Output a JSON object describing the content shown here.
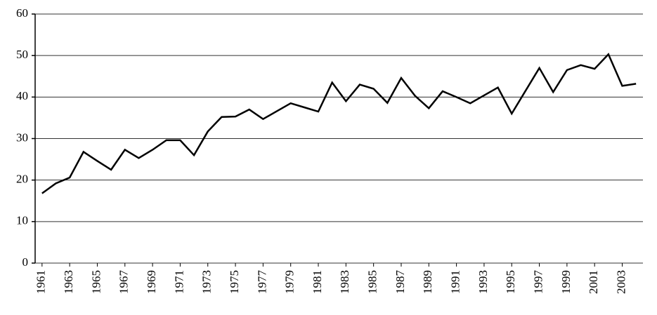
{
  "chart_data": {
    "type": "line",
    "x": [
      1961,
      1962,
      1963,
      1964,
      1965,
      1966,
      1967,
      1968,
      1969,
      1970,
      1971,
      1972,
      1973,
      1974,
      1975,
      1976,
      1977,
      1978,
      1979,
      1980,
      1981,
      1982,
      1983,
      1984,
      1985,
      1986,
      1987,
      1988,
      1989,
      1990,
      1991,
      1992,
      1993,
      1994,
      1995,
      1996,
      1997,
      1998,
      1999,
      2000,
      2001,
      2002,
      2003,
      2004
    ],
    "values": [
      16.8,
      19.2,
      20.6,
      26.8,
      24.6,
      22.5,
      27.3,
      25.3,
      27.3,
      29.6,
      29.6,
      26.0,
      31.7,
      35.2,
      35.3,
      37.0,
      34.7,
      36.6,
      38.5,
      37.5,
      36.5,
      43.5,
      39.0,
      43.0,
      42.0,
      38.6,
      44.6,
      40.3,
      37.3,
      41.4,
      40.0,
      38.5,
      40.4,
      42.3,
      36.0,
      41.5,
      47.0,
      41.2,
      46.5,
      47.7,
      46.8,
      50.3,
      42.7,
      43.2
    ],
    "color": "#000000",
    "xlim": [
      1960.5,
      2004.5
    ],
    "xticks": [
      1961,
      1963,
      1965,
      1967,
      1969,
      1971,
      1973,
      1975,
      1977,
      1979,
      1981,
      1983,
      1985,
      1987,
      1989,
      1991,
      1993,
      1995,
      1997,
      1999,
      2001,
      2003
    ],
    "ylim": [
      0,
      60
    ],
    "yticks": [
      0,
      10,
      20,
      30,
      40,
      50,
      60
    ],
    "grid": true
  }
}
